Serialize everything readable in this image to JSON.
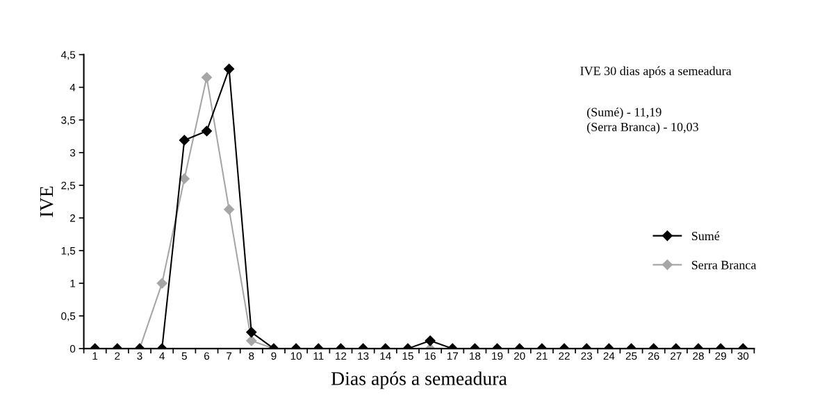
{
  "chart_data": {
    "type": "line",
    "xlabel": "Dias após a semeadura",
    "ylabel": "IVE",
    "categories": [
      "1",
      "2",
      "3",
      "4",
      "5",
      "6",
      "7",
      "8",
      "9",
      "10",
      "11",
      "12",
      "13",
      "14",
      "15",
      "16",
      "17",
      "18",
      "19",
      "20",
      "21",
      "22",
      "23",
      "24",
      "25",
      "26",
      "27",
      "28",
      "29",
      "30"
    ],
    "series": [
      {
        "name": "Sumé",
        "color": "#000000",
        "values": [
          0,
          0,
          0,
          0,
          3.19,
          3.33,
          4.28,
          0.25,
          0,
          0,
          0,
          0,
          0,
          0,
          0,
          0.12,
          0,
          0,
          0,
          0,
          0,
          0,
          0,
          0,
          0,
          0,
          0,
          0,
          0,
          0
        ]
      },
      {
        "name": "Serra Branca",
        "color": "#a6a6a6",
        "values": [
          0,
          0,
          0,
          1.0,
          2.6,
          4.15,
          2.13,
          0.12,
          0,
          0,
          0,
          0,
          0,
          0,
          0,
          0,
          0,
          0,
          0,
          0,
          0,
          0,
          0,
          0,
          0,
          0,
          0,
          0,
          0,
          0
        ]
      }
    ],
    "ylim": [
      0,
      4.5
    ],
    "yticks": [
      0,
      {
        "value": 0.5,
        "label": "0,5"
      },
      1,
      {
        "value": 1.5,
        "label": "1,5"
      },
      2,
      {
        "value": 2.5,
        "label": "2,5"
      },
      3,
      {
        "value": 3.5,
        "label": "3,5"
      },
      4,
      {
        "value": 4.5,
        "label": "4,5"
      }
    ],
    "annotations": [
      "IVE 30 dias após a semeadura",
      "(Sumé) - 11,19\n(Serra Branca) - 10,03"
    ],
    "marker": "diamond",
    "line_style": "solid",
    "legend": "right",
    "grid": false
  }
}
